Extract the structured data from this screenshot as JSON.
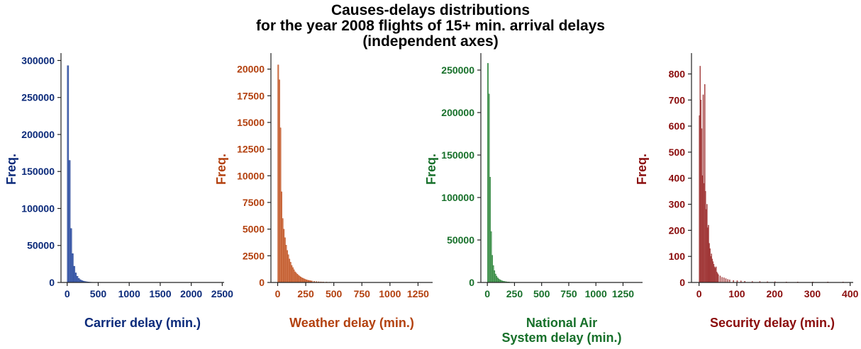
{
  "title_lines": [
    "Causes-delays distributions",
    "for the year 2008 flights of 15+ min. arrival delays",
    "(independent axes)"
  ],
  "chart_data": [
    {
      "type": "bar",
      "color": "#0b2a7a",
      "bar_fill": "#4a68b4",
      "ylabel": "Freq.",
      "xlabel": [
        "Carrier delay (min.)"
      ],
      "xlim": [
        -100,
        2530
      ],
      "ylim": [
        0,
        310000
      ],
      "xticks": [
        0,
        500,
        1000,
        1500,
        2000,
        2500
      ],
      "yticks": [
        0,
        50000,
        100000,
        150000,
        200000,
        250000,
        300000
      ],
      "bin_width": 25,
      "x": [
        0,
        25,
        50,
        75,
        100,
        125,
        150,
        175,
        200,
        225,
        250,
        275,
        300,
        325,
        350,
        375,
        400,
        425,
        450
      ],
      "values": [
        293000,
        165000,
        73000,
        39000,
        22000,
        13000,
        8500,
        5500,
        3800,
        2600,
        1900,
        1400,
        1000,
        700,
        500,
        380,
        280,
        200,
        150
      ]
    },
    {
      "type": "bar",
      "color": "#b3410f",
      "bar_fill": "#d2784f",
      "ylabel": "Freq.",
      "xlabel": [
        "Weather delay (min.)"
      ],
      "xlim": [
        -60,
        1380
      ],
      "ylim": [
        0,
        21500
      ],
      "xticks": [
        0,
        250,
        500,
        750,
        1000,
        1250
      ],
      "yticks": [
        0,
        2500,
        5000,
        7500,
        10000,
        12500,
        15000,
        17500,
        20000
      ],
      "bin_width": 10,
      "x": [
        0,
        10,
        20,
        30,
        40,
        50,
        60,
        70,
        80,
        90,
        100,
        110,
        120,
        130,
        140,
        150,
        160,
        170,
        180,
        190,
        200,
        210,
        220,
        230,
        240,
        250,
        260,
        270,
        280,
        290,
        300,
        320,
        340,
        360,
        380,
        400,
        430,
        460,
        500,
        550
      ],
      "values": [
        20400,
        19000,
        14500,
        8500,
        6000,
        5000,
        4200,
        3500,
        3000,
        2600,
        2200,
        1900,
        1600,
        1400,
        1200,
        1000,
        900,
        780,
        680,
        600,
        520,
        450,
        400,
        350,
        300,
        260,
        230,
        200,
        180,
        160,
        140,
        110,
        90,
        70,
        60,
        50,
        40,
        30,
        20,
        12
      ]
    },
    {
      "type": "bar",
      "color": "#17702a",
      "bar_fill": "#5aa463",
      "ylabel": "Freq.",
      "xlabel": [
        "National Air",
        "System delay (min.)"
      ],
      "xlim": [
        -60,
        1430
      ],
      "ylim": [
        0,
        270000
      ],
      "xticks": [
        0,
        250,
        500,
        750,
        1000,
        1250
      ],
      "yticks": [
        0,
        50000,
        100000,
        150000,
        200000,
        250000
      ],
      "bin_width": 10,
      "x": [
        0,
        10,
        20,
        30,
        40,
        50,
        60,
        70,
        80,
        90,
        100,
        110,
        120,
        130,
        140,
        150,
        160,
        170,
        180,
        190,
        200,
        220,
        240,
        260,
        280,
        300,
        330,
        360
      ],
      "values": [
        258000,
        222000,
        124000,
        60000,
        32000,
        20000,
        14000,
        10000,
        7500,
        5500,
        4200,
        3300,
        2600,
        2000,
        1600,
        1300,
        1000,
        850,
        700,
        580,
        480,
        380,
        300,
        230,
        180,
        140,
        90,
        60
      ]
    },
    {
      "type": "bar",
      "color": "#8a0c0c",
      "bar_fill": "#b25b5b",
      "ylabel": "Freq.",
      "xlabel": [
        "Security delay (min.)"
      ],
      "xlim": [
        -20,
        408
      ],
      "ylim": [
        0,
        880
      ],
      "xticks": [
        0,
        100,
        200,
        300,
        400
      ],
      "yticks": [
        0,
        100,
        200,
        300,
        400,
        500,
        600,
        700,
        800
      ],
      "bin_width": 2,
      "x": [
        0,
        2,
        4,
        6,
        8,
        10,
        12,
        14,
        16,
        18,
        20,
        22,
        24,
        26,
        28,
        30,
        32,
        34,
        36,
        38,
        40,
        42,
        44,
        46,
        48,
        50,
        55,
        60,
        65,
        70,
        75,
        80,
        90,
        100,
        110,
        120,
        140,
        160,
        180,
        200,
        230,
        260,
        300,
        340,
        380
      ],
      "values": [
        640,
        830,
        700,
        590,
        410,
        720,
        380,
        760,
        350,
        280,
        300,
        210,
        220,
        150,
        130,
        100,
        110,
        90,
        80,
        70,
        60,
        55,
        60,
        40,
        35,
        30,
        25,
        20,
        18,
        15,
        12,
        10,
        8,
        7,
        6,
        5,
        4,
        4,
        3,
        3,
        2,
        2,
        2,
        2,
        2
      ]
    }
  ]
}
